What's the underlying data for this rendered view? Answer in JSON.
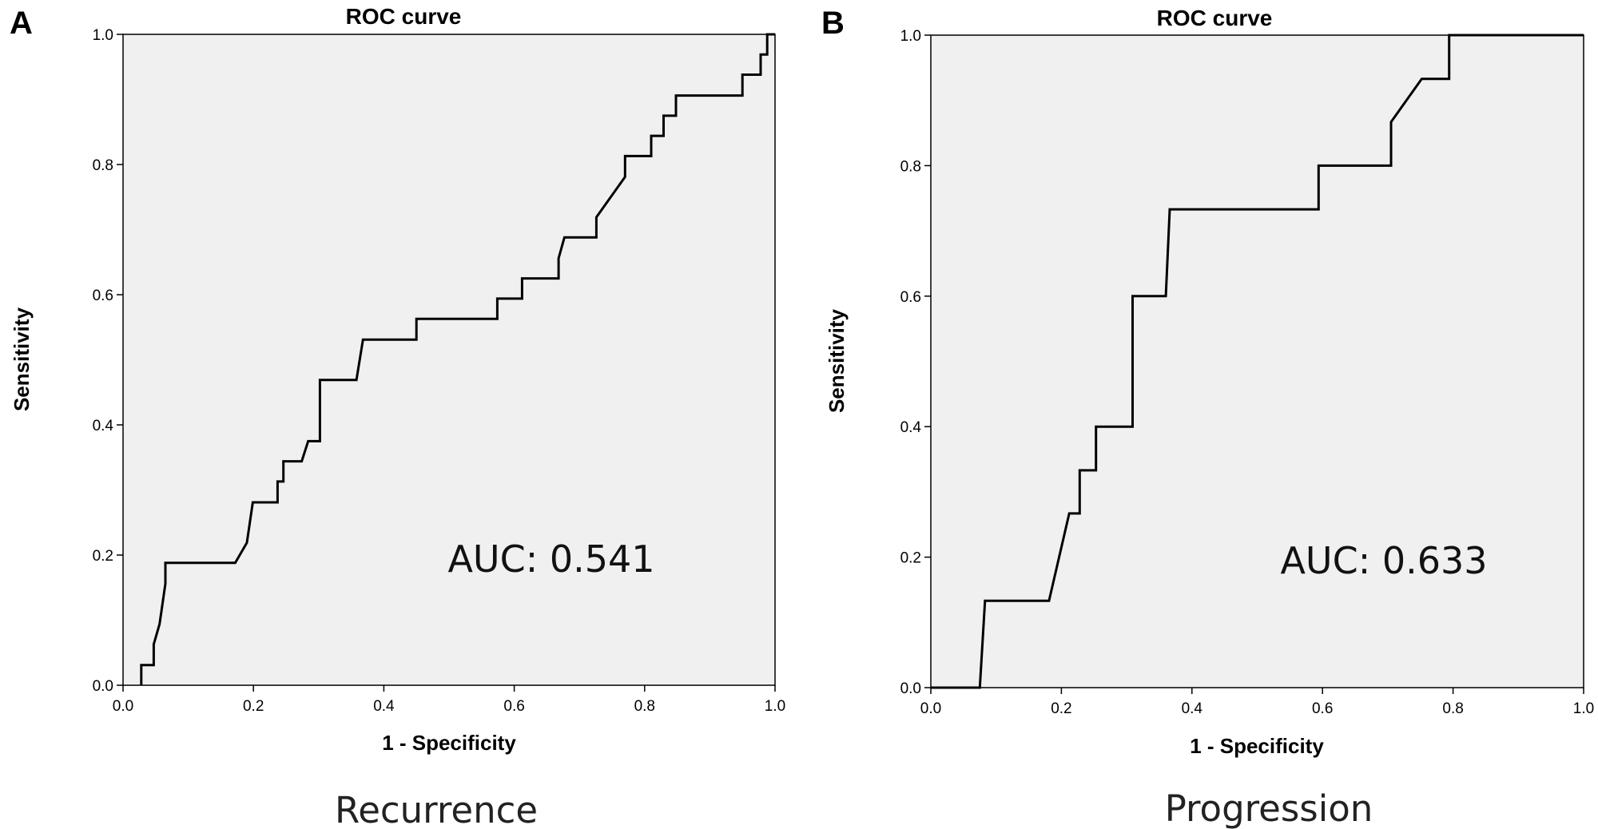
{
  "chart_data": [
    {
      "type": "line",
      "panel_label": "A",
      "title": "ROC curve",
      "xlabel": "1 - Specificity",
      "ylabel": "Sensitivity",
      "xlim": [
        0,
        1
      ],
      "ylim": [
        0,
        1
      ],
      "x_ticks": [
        "0.0",
        "0.2",
        "0.4",
        "0.6",
        "0.8",
        "1.0"
      ],
      "y_ticks": [
        "0.0",
        "0.2",
        "0.4",
        "0.6",
        "0.8",
        "1.0"
      ],
      "grid": false,
      "annotation": "AUC: 0.541",
      "caption": "Recurrence",
      "background_color": "#f0f0f0",
      "series": [
        {
          "x": [
            0.028,
            0.028,
            0.047,
            0.047,
            0.056,
            0.065,
            0.065,
            0.172,
            0.19,
            0.199,
            0.237,
            0.237,
            0.246,
            0.246,
            0.274,
            0.284,
            0.302,
            0.302,
            0.358,
            0.368,
            0.45,
            0.45,
            0.574,
            0.574,
            0.612,
            0.612,
            0.668,
            0.668,
            0.677,
            0.726,
            0.726,
            0.77,
            0.77,
            0.81,
            0.81,
            0.829,
            0.829,
            0.848,
            0.848,
            0.95,
            0.95,
            0.978,
            0.978,
            0.988,
            0.988,
            1.0
          ],
          "y": [
            0.0,
            0.031,
            0.031,
            0.063,
            0.094,
            0.156,
            0.188,
            0.188,
            0.219,
            0.281,
            0.281,
            0.313,
            0.313,
            0.344,
            0.344,
            0.375,
            0.375,
            0.469,
            0.469,
            0.531,
            0.531,
            0.563,
            0.563,
            0.594,
            0.594,
            0.625,
            0.625,
            0.656,
            0.688,
            0.688,
            0.719,
            0.781,
            0.813,
            0.813,
            0.844,
            0.844,
            0.875,
            0.875,
            0.906,
            0.906,
            0.938,
            0.938,
            0.969,
            0.969,
            1.0,
            1.0
          ]
        }
      ]
    },
    {
      "type": "line",
      "panel_label": "B",
      "title": "ROC curve",
      "xlabel": "1 - Specificity",
      "ylabel": "Sensitivity",
      "xlim": [
        0,
        1
      ],
      "ylim": [
        0,
        1
      ],
      "x_ticks": [
        "0.0",
        "0.2",
        "0.4",
        "0.6",
        "0.8",
        "1.0"
      ],
      "y_ticks": [
        "0.0",
        "0.2",
        "0.4",
        "0.6",
        "0.8",
        "1.0"
      ],
      "grid": false,
      "annotation": "AUC: 0.633",
      "caption": "Progression",
      "background_color": "#f0f0f0",
      "series": [
        {
          "x": [
            0.0,
            0.075,
            0.083,
            0.181,
            0.212,
            0.228,
            0.228,
            0.253,
            0.253,
            0.309,
            0.309,
            0.36,
            0.366,
            0.594,
            0.594,
            0.705,
            0.705,
            0.752,
            0.794,
            0.794,
            1.0
          ],
          "y": [
            0.0,
            0.0,
            0.133,
            0.133,
            0.267,
            0.267,
            0.333,
            0.333,
            0.4,
            0.4,
            0.6,
            0.6,
            0.733,
            0.733,
            0.8,
            0.8,
            0.867,
            0.933,
            0.933,
            1.0,
            1.0
          ]
        }
      ]
    }
  ]
}
